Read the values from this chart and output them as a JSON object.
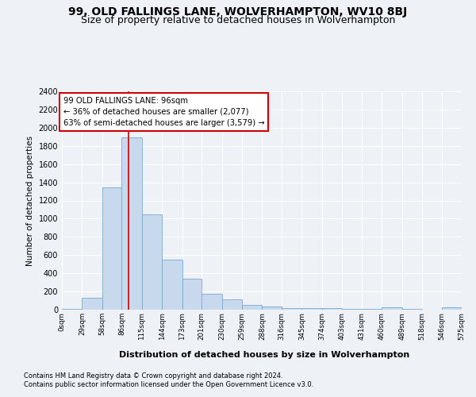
{
  "title": "99, OLD FALLINGS LANE, WOLVERHAMPTON, WV10 8BJ",
  "subtitle": "Size of property relative to detached houses in Wolverhampton",
  "xlabel": "Distribution of detached houses by size in Wolverhampton",
  "ylabel": "Number of detached properties",
  "bin_edges": [
    0,
    29,
    58,
    86,
    115,
    144,
    173,
    201,
    230,
    259,
    288,
    316,
    345,
    374,
    403,
    431,
    460,
    489,
    518,
    546,
    575
  ],
  "bar_heights": [
    10,
    130,
    1340,
    1890,
    1050,
    550,
    340,
    175,
    110,
    55,
    35,
    20,
    20,
    20,
    5,
    5,
    30,
    5,
    0,
    30
  ],
  "bar_color": "#c8d9ed",
  "bar_edge_color": "#7aaad0",
  "property_size": 96,
  "property_line_color": "#cc0000",
  "annotation_line1": "99 OLD FALLINGS LANE: 96sqm",
  "annotation_line2": "← 36% of detached houses are smaller (2,077)",
  "annotation_line3": "63% of semi-detached houses are larger (3,579) →",
  "annotation_box_color": "#ffffff",
  "annotation_box_edge": "#cc0000",
  "ylim": [
    0,
    2400
  ],
  "yticks": [
    0,
    200,
    400,
    600,
    800,
    1000,
    1200,
    1400,
    1600,
    1800,
    2000,
    2200,
    2400
  ],
  "footer_line1": "Contains HM Land Registry data © Crown copyright and database right 2024.",
  "footer_line2": "Contains public sector information licensed under the Open Government Licence v3.0.",
  "background_color": "#eef2f7",
  "grid_color": "#ffffff",
  "title_fontsize": 10,
  "subtitle_fontsize": 9
}
